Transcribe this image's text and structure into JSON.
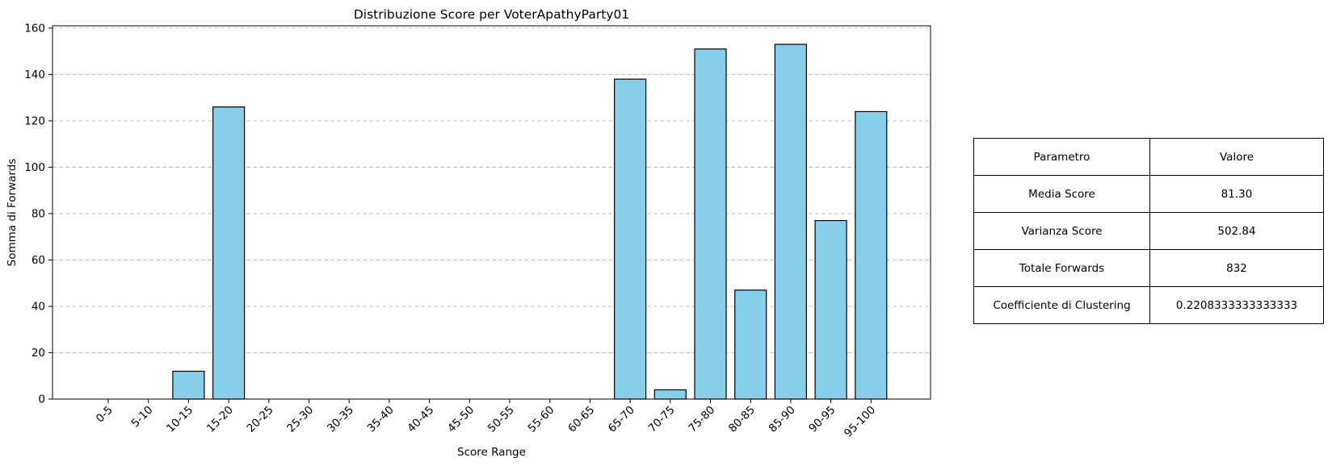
{
  "chart_data": {
    "type": "bar",
    "title": "Distribuzione Score per VoterApathyParty01",
    "xlabel": "Score Range",
    "ylabel": "Somma di Forwards",
    "categories": [
      "0-5",
      "5-10",
      "10-15",
      "15-20",
      "20-25",
      "25-30",
      "30-35",
      "35-40",
      "40-45",
      "45-50",
      "50-55",
      "55-60",
      "60-65",
      "65-70",
      "70-75",
      "75-80",
      "80-85",
      "85-90",
      "90-95",
      "95-100"
    ],
    "values": [
      0,
      0,
      12,
      126,
      0,
      0,
      0,
      0,
      0,
      0,
      0,
      0,
      0,
      138,
      4,
      151,
      47,
      153,
      77,
      124
    ],
    "ylim": [
      0,
      161
    ],
    "yticks": [
      0,
      20,
      40,
      60,
      80,
      100,
      120,
      140,
      160
    ],
    "grid": "y-dashed",
    "bar_color": "#87ceeb",
    "edge_color": "#000000"
  },
  "table": {
    "header": [
      "Parametro",
      "Valore"
    ],
    "rows": [
      [
        "Media Score",
        "81.30"
      ],
      [
        "Varianza Score",
        "502.84"
      ],
      [
        "Totale Forwards",
        "832"
      ],
      [
        "Coefficiente di Clustering",
        "0.2208333333333333"
      ]
    ]
  }
}
